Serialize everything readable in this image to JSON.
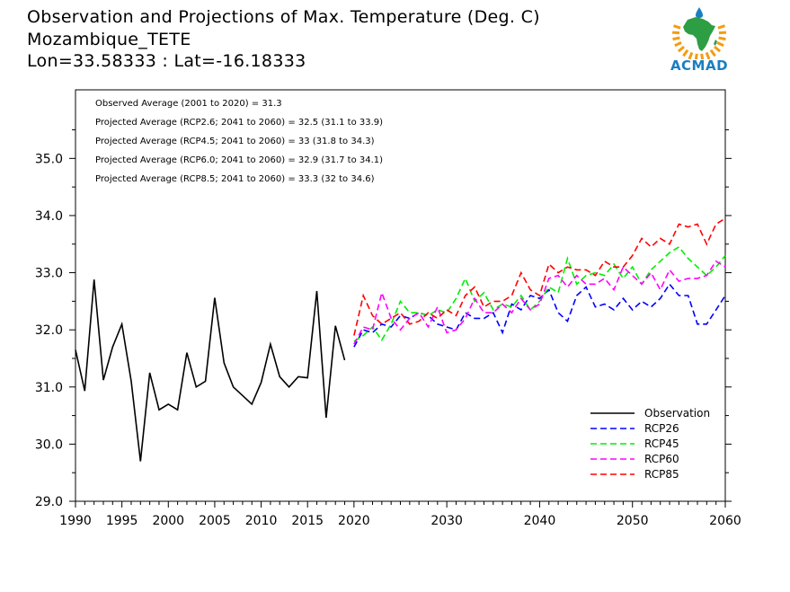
{
  "title_lines": [
    "Observation and Projections of Max. Temperature (Deg. C)",
    "Mozambique_TETE",
    "Lon=33.58333 : Lat=-16.18333"
  ],
  "logo": {
    "text": "ACMAD",
    "colors": {
      "orange": "#f39c12",
      "green": "#2e9e44",
      "blue": "#1a7fc1"
    }
  },
  "annotations": [
    "Observed Average (2001 to 2020) = 31.3",
    "Projected Average (RCP2.6; 2041 to 2060) = 32.5 (31.1 to 33.9)",
    "Projected Average (RCP4.5; 2041 to 2060) = 33 (31.8 to 34.3)",
    "Projected Average (RCP6.0; 2041 to 2060) = 32.9 (31.7 to 34.1)",
    "Projected Average (RCP8.5; 2041 to 2060) = 33.3 (32 to 34.6)"
  ],
  "chart_data": {
    "type": "line",
    "xlim": [
      1990,
      2060
    ],
    "ylim": [
      29.0,
      36.2
    ],
    "grid": false,
    "legend_position": "bottom-right",
    "x_ticks": [
      1990,
      1995,
      2000,
      2005,
      2010,
      2015,
      2020,
      2030,
      2040,
      2050,
      2060
    ],
    "y_ticks": [
      "29.0",
      "30.0",
      "31.0",
      "32.0",
      "33.0",
      "34.0",
      "35.0"
    ],
    "series": [
      {
        "name": "Observation",
        "color": "#000000",
        "dash": "solid",
        "x_start": 1990,
        "values": [
          31.65,
          30.93,
          32.88,
          31.12,
          31.7,
          32.1,
          31.1,
          29.7,
          31.25,
          30.6,
          30.7,
          30.6,
          31.6,
          31.0,
          31.1,
          32.56,
          31.42,
          31.0,
          30.85,
          30.7,
          31.08,
          31.75,
          31.18,
          31.0,
          31.18,
          31.16,
          32.68,
          30.46,
          32.07,
          31.47
        ]
      },
      {
        "name": "RCP26",
        "color": "#0000ff",
        "dash": "dashed",
        "x_start": 2020,
        "values": [
          31.7,
          32.0,
          31.95,
          32.1,
          32.05,
          32.25,
          32.2,
          32.3,
          32.25,
          32.1,
          32.05,
          32.0,
          32.3,
          32.2,
          32.2,
          32.3,
          31.95,
          32.45,
          32.35,
          32.6,
          32.55,
          32.7,
          32.3,
          32.15,
          32.6,
          32.75,
          32.4,
          32.45,
          32.35,
          32.55,
          32.35,
          32.5,
          32.4,
          32.55,
          32.8,
          32.6,
          32.6,
          32.1,
          32.1,
          32.35,
          32.6
        ]
      },
      {
        "name": "RCP45",
        "color": "#00ee00",
        "dash": "dashed",
        "x_start": 2020,
        "values": [
          31.8,
          31.9,
          32.05,
          31.82,
          32.1,
          32.5,
          32.3,
          32.3,
          32.25,
          32.35,
          32.3,
          32.55,
          32.9,
          32.5,
          32.65,
          32.35,
          32.45,
          32.4,
          32.6,
          32.35,
          32.5,
          32.75,
          32.65,
          33.25,
          32.8,
          32.95,
          33.0,
          32.95,
          33.15,
          32.9,
          33.1,
          32.8,
          33.05,
          33.2,
          33.35,
          33.45,
          33.25,
          33.1,
          32.95,
          33.1,
          33.3
        ]
      },
      {
        "name": "RCP60",
        "color": "#ff00ff",
        "dash": "dashed",
        "x_start": 2020,
        "values": [
          31.75,
          32.05,
          32.0,
          32.65,
          32.2,
          32.0,
          32.2,
          32.3,
          32.05,
          32.4,
          31.95,
          32.0,
          32.2,
          32.55,
          32.3,
          32.3,
          32.45,
          32.3,
          32.55,
          32.35,
          32.45,
          32.9,
          32.95,
          32.75,
          32.95,
          32.8,
          32.8,
          32.9,
          32.7,
          33.1,
          32.95,
          32.8,
          33.0,
          32.7,
          33.05,
          32.85,
          32.9,
          32.9,
          32.95,
          33.2,
          33.1
        ]
      },
      {
        "name": "RCP85",
        "color": "#ff0000",
        "dash": "dashed",
        "x_start": 2020,
        "values": [
          31.9,
          32.6,
          32.25,
          32.1,
          32.2,
          32.3,
          32.1,
          32.15,
          32.3,
          32.2,
          32.35,
          32.25,
          32.6,
          32.75,
          32.4,
          32.5,
          32.5,
          32.6,
          33.0,
          32.7,
          32.6,
          33.15,
          33.0,
          33.1,
          33.05,
          33.05,
          32.95,
          33.2,
          33.1,
          33.1,
          33.3,
          33.6,
          33.45,
          33.6,
          33.5,
          33.85,
          33.8,
          33.85,
          33.5,
          33.85,
          33.95
        ]
      }
    ]
  }
}
